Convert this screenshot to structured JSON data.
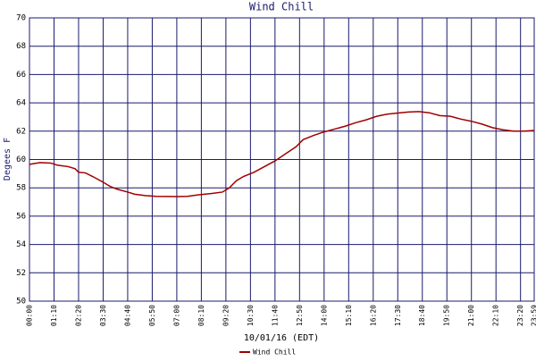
{
  "chart_data": {
    "type": "line",
    "title": "Wind Chill",
    "x_label": "10/01/16 (EDT)",
    "y_label": "Degees F",
    "x": [
      0,
      10,
      30,
      60,
      80,
      110,
      130,
      140,
      160,
      180,
      210,
      230,
      250,
      280,
      300,
      330,
      360,
      420,
      450,
      480,
      520,
      550,
      570,
      590,
      610,
      640,
      670,
      700,
      730,
      760,
      780,
      810,
      840,
      870,
      900,
      930,
      960,
      990,
      1020,
      1050,
      1080,
      1110,
      1140,
      1170,
      1200,
      1230,
      1260,
      1290,
      1320,
      1350,
      1380,
      1410,
      1439
    ],
    "series": [
      {
        "name": "Wind Chill",
        "color": "#a00000",
        "values": [
          59.65,
          59.7,
          59.78,
          59.75,
          59.6,
          59.5,
          59.35,
          59.1,
          59.05,
          58.8,
          58.4,
          58.1,
          57.9,
          57.7,
          57.55,
          57.45,
          57.4,
          57.38,
          57.4,
          57.5,
          57.6,
          57.7,
          58.0,
          58.5,
          58.8,
          59.1,
          59.5,
          59.9,
          60.4,
          60.9,
          61.4,
          61.7,
          61.95,
          62.15,
          62.35,
          62.6,
          62.8,
          63.05,
          63.2,
          63.28,
          63.35,
          63.38,
          63.3,
          63.1,
          63.05,
          62.85,
          62.7,
          62.5,
          62.25,
          62.1,
          62.0,
          62.0,
          62.05
        ]
      }
    ],
    "xlim": [
      0,
      1439
    ],
    "xticks": [
      {
        "value": 0,
        "label": "00:00"
      },
      {
        "value": 70,
        "label": "01:10"
      },
      {
        "value": 140,
        "label": "02:20"
      },
      {
        "value": 210,
        "label": "03:30"
      },
      {
        "value": 280,
        "label": "04:40"
      },
      {
        "value": 350,
        "label": "05:50"
      },
      {
        "value": 420,
        "label": "07:00"
      },
      {
        "value": 490,
        "label": "08:10"
      },
      {
        "value": 560,
        "label": "09:20"
      },
      {
        "value": 630,
        "label": "10:30"
      },
      {
        "value": 700,
        "label": "11:40"
      },
      {
        "value": 770,
        "label": "12:50"
      },
      {
        "value": 840,
        "label": "14:00"
      },
      {
        "value": 910,
        "label": "15:10"
      },
      {
        "value": 980,
        "label": "16:20"
      },
      {
        "value": 1050,
        "label": "17:30"
      },
      {
        "value": 1120,
        "label": "18:40"
      },
      {
        "value": 1190,
        "label": "19:50"
      },
      {
        "value": 1260,
        "label": "21:00"
      },
      {
        "value": 1330,
        "label": "22:10"
      },
      {
        "value": 1400,
        "label": "23:20"
      },
      {
        "value": 1439,
        "label": "23:59"
      }
    ],
    "ylim": [
      50,
      70
    ],
    "yticks": [
      50,
      52,
      54,
      56,
      58,
      60,
      62,
      64,
      66,
      68,
      70
    ],
    "grid": true
  }
}
